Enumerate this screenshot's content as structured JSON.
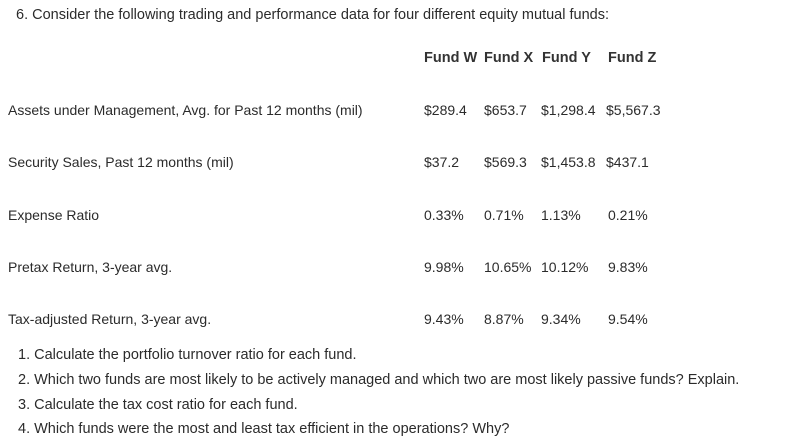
{
  "intro": "6. Consider the following trading and performance data for four different equity mutual funds:",
  "table": {
    "headers": [
      "Fund W",
      "Fund X",
      "Fund Y",
      "Fund Z"
    ],
    "rows": [
      {
        "label": "Assets under Management, Avg. for Past 12 months (mil)",
        "values": [
          "$289.4",
          "$653.7",
          "$1,298.4",
          "$5,567.3"
        ]
      },
      {
        "label": "Security Sales, Past 12 months (mil)",
        "values": [
          "$37.2",
          "$569.3",
          "$1,453.8",
          "$437.1"
        ]
      },
      {
        "label": "Expense Ratio",
        "values": [
          "0.33%",
          "0.71%",
          "1.13%",
          "0.21%"
        ]
      },
      {
        "label": "Pretax Return, 3-year avg.",
        "values": [
          "9.98%",
          "10.65%",
          "10.12%",
          "9.83%"
        ]
      },
      {
        "label": "Tax-adjusted Return, 3-year avg.",
        "values": [
          "9.43%",
          "8.87%",
          "9.34%",
          "9.54%"
        ]
      }
    ]
  },
  "questions": [
    "1. Calculate the portfolio turnover ratio for each fund.",
    "2. Which two funds are most likely to be actively managed and which two are most likely passive funds? Explain.",
    "3. Calculate the tax cost ratio for each fund.",
    "4. Which funds were the most and least tax efficient in the operations? Why?"
  ]
}
